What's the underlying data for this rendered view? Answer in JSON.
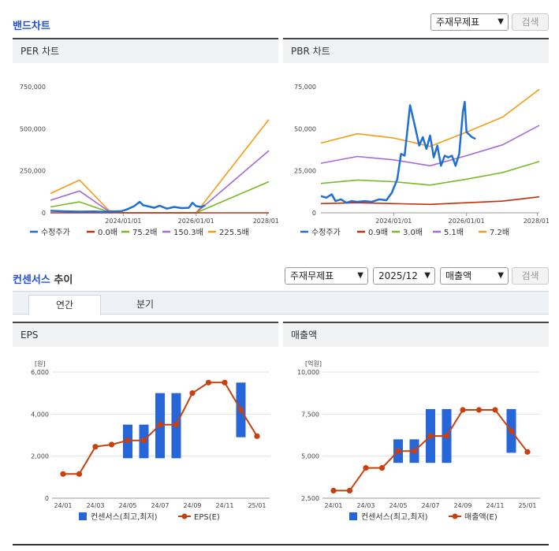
{
  "band": {
    "title": "밴드차트",
    "select": "주재무제표",
    "search": "검색"
  },
  "consensus": {
    "title_a": "컨센서스",
    "title_b": " 추이",
    "select1": "주재무제표",
    "select2": "2025/12",
    "select3": "매출액",
    "search": "검색",
    "tabs": [
      "연간",
      "분기"
    ]
  },
  "chart_data": [
    {
      "id": "per",
      "type": "line",
      "title": "PER 차트",
      "yticks": [
        "750,000",
        "500,000",
        "250,000",
        "0"
      ],
      "xticks": [
        "2024/01/01",
        "2026/01/01",
        "2028/01/"
      ],
      "ylim": [
        0,
        750000
      ],
      "xlim": [
        2022.0,
        2028.0
      ],
      "legend": [
        "수정주가",
        "0.0배",
        "75.2배",
        "150.3배",
        "225.5배"
      ],
      "colors": [
        "#1f6fd6",
        "#c0300c",
        "#7cb829",
        "#a46ad6",
        "#f59c16"
      ],
      "series": [
        {
          "name": "수정주가",
          "x": [
            2022.0,
            2022.4,
            2022.8,
            2023.2,
            2023.4,
            2023.6,
            2023.8,
            2023.95,
            2024.1,
            2024.3,
            2024.45,
            2024.55,
            2024.7,
            2024.85,
            2025.0,
            2025.2,
            2025.4,
            2025.6,
            2025.8,
            2025.9,
            2026.0,
            2026.15,
            2026.25
          ],
          "y": [
            12000,
            9000,
            7000,
            8000,
            6000,
            7000,
            9000,
            10000,
            20000,
            40000,
            65000,
            45000,
            38000,
            30000,
            42000,
            25000,
            35000,
            28000,
            30000,
            60000,
            40000,
            35000,
            45000
          ]
        },
        {
          "name": "0.0배",
          "x": [
            2022.0,
            2024.0,
            2026.0,
            2028.0
          ],
          "y": [
            0,
            0,
            0,
            0
          ]
        },
        {
          "name": "75.2배",
          "x": [
            2022.0,
            2022.8,
            2023.6,
            2024.0,
            2026.0,
            2028.0
          ],
          "y": [
            35000,
            65000,
            5000,
            0,
            0,
            185000
          ]
        },
        {
          "name": "150.3배",
          "x": [
            2022.0,
            2022.8,
            2023.6,
            2024.0,
            2026.0,
            2028.0
          ],
          "y": [
            75000,
            130000,
            10000,
            0,
            0,
            370000
          ]
        },
        {
          "name": "225.5배",
          "x": [
            2022.0,
            2022.8,
            2023.6,
            2024.0,
            2026.0,
            2028.0
          ],
          "y": [
            115000,
            195000,
            15000,
            0,
            0,
            555000
          ]
        }
      ]
    },
    {
      "id": "pbr",
      "type": "line",
      "title": "PBR 차트",
      "yticks": [
        "75,000",
        "50,000",
        "25,000",
        "0"
      ],
      "xticks": [
        "2024/01/01",
        "2026/01/01",
        "2028/01/"
      ],
      "ylim": [
        0,
        75000
      ],
      "xlim": [
        2022.0,
        2028.0
      ],
      "legend": [
        "수정주가",
        "0.9배",
        "3.0배",
        "5.1배",
        "7.2배"
      ],
      "colors": [
        "#1f6fd6",
        "#c0300c",
        "#7cb829",
        "#a46ad6",
        "#f59c16"
      ],
      "series": [
        {
          "name": "수정주가",
          "x": [
            2022.0,
            2022.15,
            2022.3,
            2022.4,
            2022.55,
            2022.7,
            2022.85,
            2023.0,
            2023.2,
            2023.4,
            2023.6,
            2023.8,
            2023.95,
            2024.1,
            2024.2,
            2024.3,
            2024.45,
            2024.6,
            2024.7,
            2024.8,
            2024.9,
            2025.0,
            2025.1,
            2025.2,
            2025.3,
            2025.4,
            2025.5,
            2025.6,
            2025.7,
            2025.8,
            2025.9,
            2025.95,
            2026.0,
            2026.05,
            2026.15,
            2026.25
          ],
          "y": [
            10000,
            9000,
            11000,
            7000,
            8000,
            6000,
            7000,
            6500,
            7000,
            6500,
            8000,
            7500,
            12000,
            20000,
            35000,
            34000,
            64000,
            50000,
            40000,
            45000,
            38000,
            46000,
            33000,
            40000,
            28000,
            34000,
            33000,
            34000,
            28000,
            35000,
            60000,
            66000,
            48000,
            47000,
            45000,
            44000
          ]
        },
        {
          "name": "0.9배",
          "x": [
            2022.0,
            2023.0,
            2024.0,
            2025.0,
            2026.0,
            2027.0,
            2028.0
          ],
          "y": [
            5500,
            6000,
            5500,
            5000,
            6000,
            7000,
            9500
          ]
        },
        {
          "name": "3.0배",
          "x": [
            2022.0,
            2023.0,
            2024.0,
            2025.0,
            2026.0,
            2027.0,
            2028.0
          ],
          "y": [
            17500,
            19500,
            18500,
            16500,
            20000,
            24000,
            30500
          ]
        },
        {
          "name": "5.1배",
          "x": [
            2022.0,
            2023.0,
            2024.0,
            2025.0,
            2026.0,
            2027.0,
            2028.0
          ],
          "y": [
            29500,
            33500,
            31500,
            28000,
            34000,
            40500,
            52000
          ]
        },
        {
          "name": "7.2배",
          "x": [
            2022.0,
            2023.0,
            2024.0,
            2025.0,
            2026.0,
            2027.0,
            2028.0
          ],
          "y": [
            41500,
            47000,
            44500,
            39500,
            48000,
            57000,
            73500
          ]
        }
      ]
    },
    {
      "id": "eps",
      "type": "bar",
      "title": "EPS",
      "unit": "[원]",
      "yticks": [
        "6,000",
        "4,000",
        "2,000",
        "0"
      ],
      "ylim": [
        0,
        6000
      ],
      "xticks": [
        "24/01",
        "24/03",
        "24/05",
        "24/07",
        "24/09",
        "24/11",
        "25/01"
      ],
      "categories": [
        "24/01",
        "24/02",
        "24/03",
        "24/04",
        "24/05",
        "24/06",
        "24/07",
        "24/08",
        "24/09",
        "24/10",
        "24/11",
        "24/12",
        "25/01"
      ],
      "bars": [
        null,
        null,
        null,
        null,
        [
          1900,
          3500
        ],
        [
          1900,
          3500
        ],
        [
          1900,
          5000
        ],
        [
          1900,
          5000
        ],
        null,
        null,
        null,
        [
          2900,
          5500
        ],
        null
      ],
      "line": [
        1150,
        1150,
        2450,
        2550,
        2750,
        2750,
        3500,
        3500,
        5000,
        5500,
        5500,
        4200,
        2950
      ],
      "legend": [
        "컨센서스(최고,최저)",
        "EPS(E)"
      ],
      "colors": [
        "#2766d9",
        "#c8400f"
      ]
    },
    {
      "id": "sales",
      "type": "bar",
      "title": "매출액",
      "unit": "[억원]",
      "yticks": [
        "10,000",
        "7,500",
        "5,000",
        "2,500"
      ],
      "ylim": [
        2500,
        10000
      ],
      "xticks": [
        "24/01",
        "24/03",
        "24/05",
        "24/07",
        "24/09",
        "24/11",
        "25/01"
      ],
      "categories": [
        "24/01",
        "24/02",
        "24/03",
        "24/04",
        "24/05",
        "24/06",
        "24/07",
        "24/08",
        "24/09",
        "24/10",
        "24/11",
        "24/12",
        "25/01"
      ],
      "bars": [
        null,
        null,
        null,
        null,
        [
          4600,
          6000
        ],
        [
          4600,
          6000
        ],
        [
          4600,
          7800
        ],
        [
          4600,
          7800
        ],
        null,
        null,
        null,
        [
          5200,
          7800
        ],
        null
      ],
      "line": [
        2950,
        2950,
        4300,
        4300,
        5300,
        5300,
        6200,
        6200,
        7750,
        7750,
        7750,
        6500,
        5250
      ],
      "legend": [
        "컨센서스(최고,최저)",
        "매출액(E)"
      ],
      "colors": [
        "#2766d9",
        "#c8400f"
      ]
    }
  ]
}
